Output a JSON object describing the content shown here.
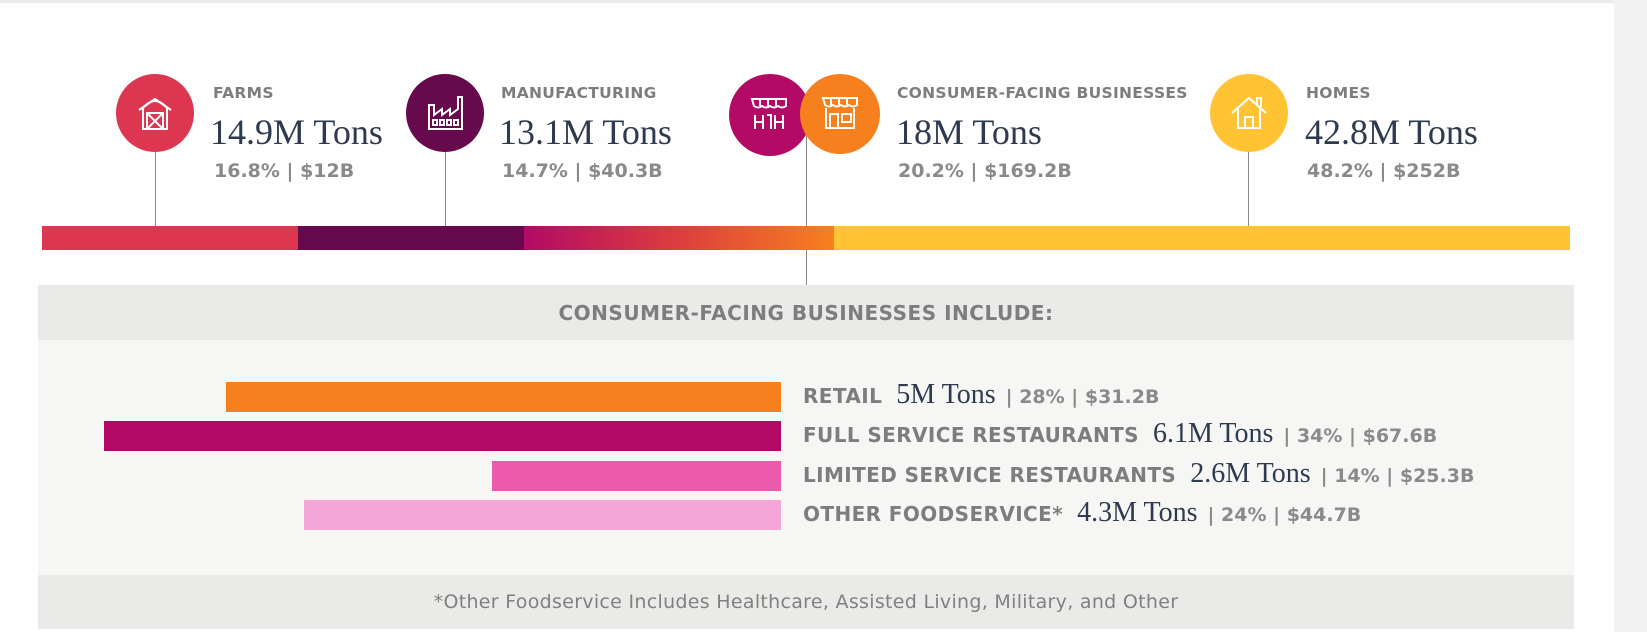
{
  "chart_data": [
    {
      "type": "bar",
      "orientation": "horizontal-stacked",
      "unit": "Tons",
      "categories": [
        "FARMS",
        "MANUFACTURING",
        "CONSUMER-FACING BUSINESSES",
        "HOMES"
      ],
      "series": [
        {
          "values_tons_millions": [
            14.9,
            13.1,
            18,
            42.8
          ]
        }
      ],
      "items": [
        {
          "key": "farms",
          "label": "FARMS",
          "tons": "14.9M Tons",
          "tons_value": 14.9,
          "stats": "16.8% | $12B",
          "color": "#dc3651",
          "icon": "barn-icon"
        },
        {
          "key": "manufacturing",
          "label": "MANUFACTURING",
          "tons": "13.1M Tons",
          "tons_value": 13.1,
          "stats": "14.7% | $40.3B",
          "color": "#66094d",
          "icon": "factory-icon"
        },
        {
          "key": "consumer",
          "label": "CONSUMER-FACING BUSINESSES",
          "tons": "18M Tons",
          "tons_value": 18,
          "stats": "20.2% | $169.2B",
          "color": "#f7801e",
          "color_start": "#b30a65",
          "icon": "storefront-icon"
        },
        {
          "key": "homes",
          "label": "HOMES",
          "tons": "42.8M Tons",
          "tons_value": 42.8,
          "stats": "48.2% | $252B",
          "color": "#ffc333",
          "icon": "house-icon"
        }
      ]
    },
    {
      "type": "bar",
      "orientation": "horizontal",
      "title": "CONSUMER-FACING BUSINESSES INCLUDE:",
      "categories": [
        "RETAIL",
        "FULL SERVICE RESTAURANTS",
        "LIMITED SERVICE RESTAURANTS",
        "OTHER FOODSERVICE*"
      ],
      "series": [
        {
          "values_tons_millions": [
            5,
            6.1,
            2.6,
            4.3
          ]
        }
      ],
      "items": [
        {
          "key": "retail",
          "label": "RETAIL",
          "tons": "5M Tons",
          "tons_value": 5,
          "stats": "| 28% | $31.2B",
          "color": "#f6801e"
        },
        {
          "key": "full",
          "label": "FULL SERVICE RESTAURANTS",
          "tons": "6.1M Tons",
          "tons_value": 6.1,
          "stats": "| 34% | $67.6B",
          "color": "#b30a65"
        },
        {
          "key": "limited",
          "label": "LIMITED SERVICE RESTAURANTS",
          "tons": "2.6M Tons",
          "tons_value": 2.6,
          "stats": "| 14% | $25.3B",
          "color": "#ec5aac"
        },
        {
          "key": "other",
          "label": "OTHER FOODSERVICE*",
          "tons": "4.3M Tons",
          "tons_value": 4.3,
          "stats": "| 24% | $44.7B",
          "color": "#f4a6d8"
        }
      ],
      "footnote": "*Other Foodservice Includes Healthcare, Assisted Living, Military, and Other"
    }
  ]
}
